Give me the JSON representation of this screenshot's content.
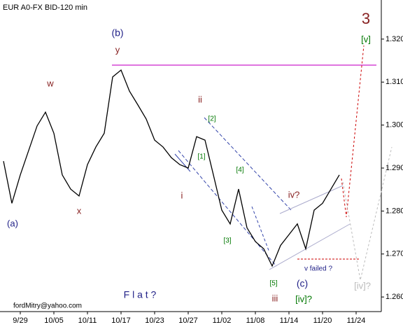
{
  "chart_data": {
    "type": "line",
    "title": "EUR A0-FX BID-120 min",
    "categories": [
      null,
      null,
      "9/29",
      null,
      null,
      null,
      "10/05",
      null,
      null,
      null,
      "10/11",
      null,
      null,
      null,
      "10/17",
      null,
      null,
      null,
      "10/23",
      null,
      null,
      null,
      "10/27",
      null,
      null,
      null,
      "11/02",
      null,
      null,
      null,
      "11/08",
      null,
      null,
      null,
      "11/14",
      null,
      null,
      null,
      "11/20",
      null,
      null,
      null,
      "11/24"
    ],
    "series": [
      {
        "name": "EUR",
        "color": "#000000",
        "values": [
          1.2916,
          1.2818,
          1.2884,
          1.2941,
          1.2998,
          1.303,
          1.2981,
          1.2884,
          1.2851,
          1.2835,
          1.2908,
          1.2949,
          1.2981,
          1.3112,
          1.3128,
          1.3079,
          1.3047,
          1.3014,
          1.2965,
          1.2949,
          1.2924,
          1.2908,
          1.29,
          1.2973,
          1.2965,
          1.2884,
          1.2802,
          1.277,
          1.2851,
          1.2761,
          1.2729,
          1.2712,
          1.2672,
          1.272,
          1.2745,
          1.277,
          1.2712,
          1.2802,
          1.2818,
          1.2851,
          1.2884,
          null,
          null
        ]
      }
    ],
    "ylim": [
      1.2566,
      1.3291
    ],
    "yticks": [
      {
        "value": 1.26,
        "label": "1.260"
      },
      {
        "value": 1.27,
        "label": "1.270"
      },
      {
        "value": 1.28,
        "label": "1.280"
      },
      {
        "value": 1.29,
        "label": "1.290"
      },
      {
        "value": 1.3,
        "label": "1.300"
      },
      {
        "value": 1.31,
        "label": "1.310"
      },
      {
        "value": 1.32,
        "label": "1.320"
      }
    ],
    "annotations": [
      "(b)",
      "y",
      "w",
      "x",
      "(a)",
      "ii",
      "i",
      "[1]",
      "[2]",
      "[3]",
      "[4]",
      "[5]",
      "iii",
      "iv?",
      "(c)",
      "v failed ?",
      "[iv]?",
      "[v]",
      "3",
      "[iv]?",
      "F l a t ?",
      "fordMitry@yahoo.com"
    ]
  }
}
